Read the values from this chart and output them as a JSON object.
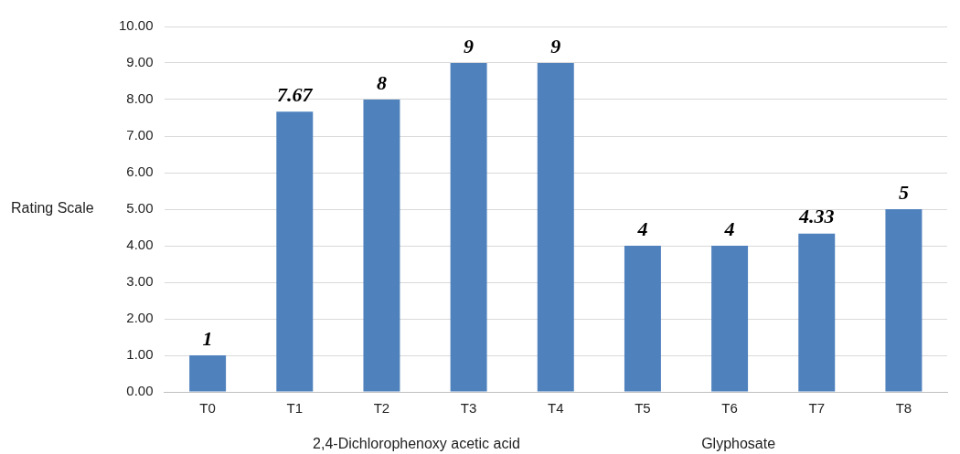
{
  "chart_data": {
    "type": "bar",
    "ylabel": "Rating Scale",
    "categories": [
      "T0",
      "T1",
      "T2",
      "T3",
      "T4",
      "T5",
      "T6",
      "T7",
      "T8"
    ],
    "values": [
      1,
      7.67,
      8,
      9,
      9,
      4,
      4,
      4.33,
      5
    ],
    "color": "#4f81bd",
    "ylim": [
      0,
      10
    ],
    "yticks": [
      {
        "value": 0,
        "label": "0.00"
      },
      {
        "value": 1,
        "label": "1.00"
      },
      {
        "value": 2,
        "label": "2.00"
      },
      {
        "value": 3,
        "label": "3.00"
      },
      {
        "value": 4,
        "label": "4.00"
      },
      {
        "value": 5,
        "label": "5.00"
      },
      {
        "value": 6,
        "label": "6.00"
      },
      {
        "value": 7,
        "label": "7.00"
      },
      {
        "value": 8,
        "label": "8.00"
      },
      {
        "value": 9,
        "label": "9.00"
      },
      {
        "value": 10,
        "label": "10.00"
      }
    ],
    "grid": "y",
    "legend": false,
    "data_labels": true,
    "annotations": [
      "2,4-Dichlorophenoxy acetic acid",
      "Glyphosate"
    ]
  }
}
